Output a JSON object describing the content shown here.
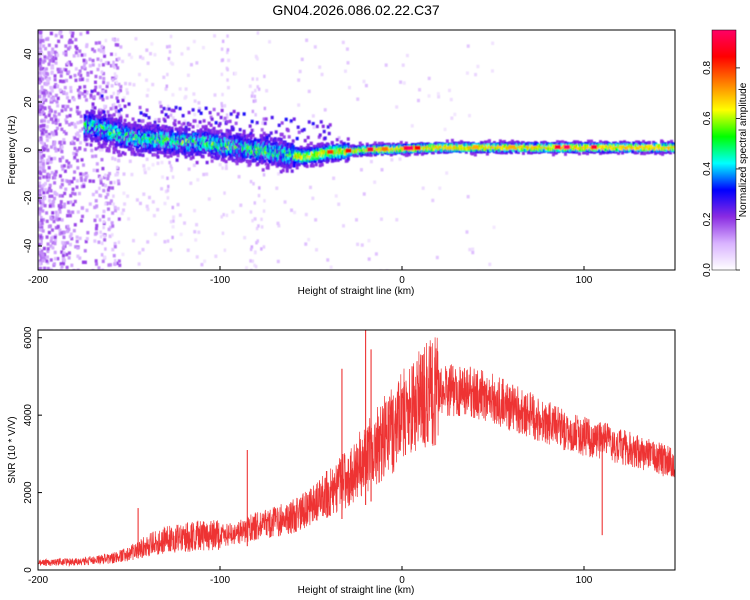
{
  "title": "GN04.2026.086.02.22.C37",
  "chart_data": [
    {
      "type": "heatmap",
      "title": "GN04.2026.086.02.22.C37",
      "xlabel": "Height of straight line (km)",
      "ylabel": "Frequency (Hz)",
      "xlim": [
        -200,
        150
      ],
      "ylim": [
        -50,
        50
      ],
      "xticks": [
        -200,
        -100,
        0,
        100
      ],
      "yticks": [
        -40,
        -20,
        0,
        20,
        40
      ],
      "colorbar": {
        "label": "Normalized spectral amplitude",
        "range": [
          0.0,
          0.95
        ],
        "ticks": [
          "0.0",
          "0.2",
          "0.4",
          "0.6",
          "0.8"
        ],
        "tick_values": [
          0.0,
          0.2,
          0.4,
          0.6,
          0.8
        ],
        "colormap": [
          "#ffffff",
          "#d9b3ff",
          "#8a2be2",
          "#0000ff",
          "#00ffff",
          "#00ff00",
          "#ffff00",
          "#ff8000",
          "#ff0000",
          "#ff0066"
        ]
      },
      "signal_centerline": {
        "x": [
          -170,
          -150,
          -130,
          -110,
          -90,
          -70,
          -55,
          -40,
          -20,
          0,
          20,
          60,
          100,
          150
        ],
        "y": [
          10,
          5,
          4,
          3,
          1,
          -1,
          -3,
          -1,
          0,
          0.5,
          1,
          1,
          1,
          1
        ]
      }
    },
    {
      "type": "line",
      "xlabel": "Height of straight line (km)",
      "ylabel": "SNR (10 * V/V)",
      "xlim": [
        -200,
        150
      ],
      "ylim": [
        0,
        6200
      ],
      "xticks": [
        -200,
        -100,
        0,
        100
      ],
      "yticks": [
        0,
        2000,
        4000,
        6000
      ],
      "series": [
        {
          "name": "SNR",
          "color": "#ee3333",
          "x": [
            -200,
            -180,
            -160,
            -150,
            -140,
            -130,
            -120,
            -110,
            -100,
            -90,
            -80,
            -70,
            -60,
            -50,
            -40,
            -30,
            -20,
            -10,
            0,
            10,
            20,
            30,
            40,
            50,
            60,
            70,
            80,
            90,
            100,
            110,
            120,
            130,
            140,
            150
          ],
          "y": [
            180,
            200,
            280,
            400,
            600,
            750,
            800,
            850,
            850,
            950,
            1100,
            1200,
            1350,
            1600,
            1950,
            2300,
            2800,
            3300,
            3800,
            4200,
            4500,
            4600,
            4500,
            4350,
            4150,
            3950,
            3750,
            3550,
            3400,
            3300,
            3150,
            3000,
            2850,
            2700
          ]
        }
      ],
      "peaks": [
        {
          "x": -20,
          "y": 6200
        },
        {
          "x": -17,
          "y": 5700
        },
        {
          "x": -33,
          "y": 5200
        },
        {
          "x": -85,
          "y": 3100
        },
        {
          "x": -145,
          "y": 1600
        }
      ]
    }
  ]
}
